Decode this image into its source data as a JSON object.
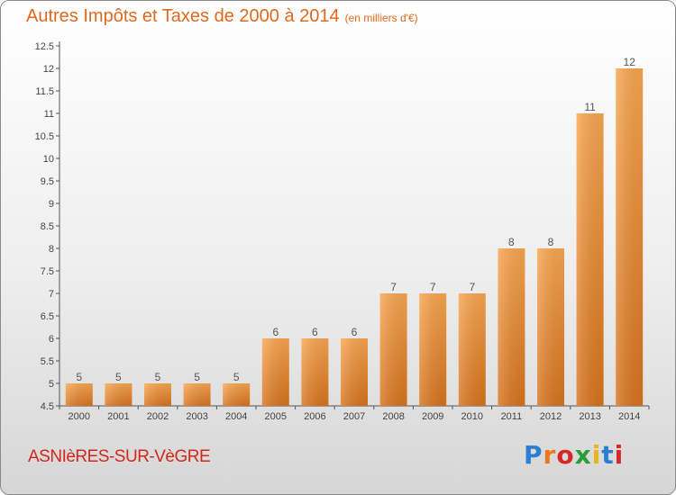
{
  "title": {
    "main": "Autres Impôts et Taxes de 2000 à 2014",
    "unit": "(en milliers d'€)"
  },
  "commune": "ASNIèRES-SUR-VèGRE",
  "logo": {
    "text": "Proxiti",
    "letters": [
      "P",
      "r",
      "o",
      "x",
      "i",
      "t",
      "i"
    ],
    "colors": [
      "#2a7fd4",
      "#e87a1d",
      "#d62828",
      "#2a9d3a",
      "#e8b51d",
      "#2a7fd4",
      "#d62828"
    ]
  },
  "chart_data": {
    "type": "bar",
    "title": "Autres Impôts et Taxes de 2000 à 2014",
    "subtitle": "(en milliers d'€)",
    "categories": [
      "2000",
      "2001",
      "2002",
      "2003",
      "2004",
      "2005",
      "2006",
      "2007",
      "2008",
      "2009",
      "2010",
      "2011",
      "2012",
      "2013",
      "2014"
    ],
    "values": [
      5,
      5,
      5,
      5,
      5,
      6,
      6,
      6,
      7,
      7,
      7,
      8,
      8,
      11,
      12
    ],
    "data_labels": [
      "5",
      "5",
      "5",
      "5",
      "5",
      "6",
      "6",
      "6",
      "7",
      "7",
      "7",
      "8",
      "8",
      "11",
      "12"
    ],
    "ylim": [
      4.5,
      12.5
    ],
    "yticks": [
      "4.5",
      "5",
      "5.5",
      "6",
      "6.5",
      "7",
      "7.5",
      "8",
      "8.5",
      "9",
      "9.5",
      "10",
      "10.5",
      "11",
      "11.5",
      "12",
      "12.5"
    ],
    "grid": false,
    "bar_color": "#f0902f"
  }
}
